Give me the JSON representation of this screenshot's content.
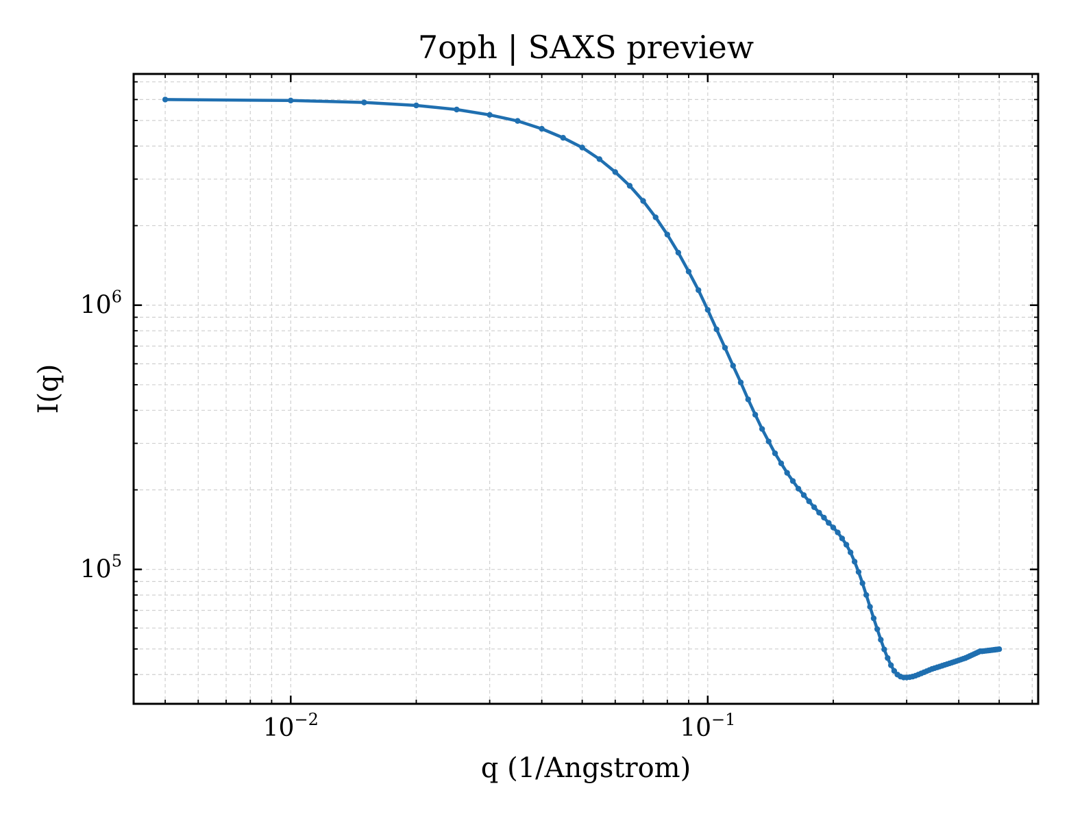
{
  "chart_data": {
    "type": "line",
    "title": "7oph | SAXS preview",
    "xlabel": "q (1/Angstrom)",
    "ylabel": "I(q)",
    "xscale": "log",
    "yscale": "log",
    "xlim": [
      0.0042,
      0.62
    ],
    "ylim": [
      31000,
      7500000
    ],
    "grid": true,
    "x_ticks": [
      {
        "value": 0.01,
        "base": "10",
        "exponent": "−2"
      },
      {
        "value": 0.1,
        "base": "10",
        "exponent": "−1"
      }
    ],
    "y_ticks": [
      {
        "value": 100000,
        "base": "10",
        "exponent": "5"
      },
      {
        "value": 1000000,
        "base": "10",
        "exponent": "6"
      }
    ],
    "series": [
      {
        "color": "#1f6fb0",
        "marker": "dot",
        "x": [
          0.005,
          0.01,
          0.015,
          0.02,
          0.025,
          0.03,
          0.035,
          0.04,
          0.045,
          0.05,
          0.055,
          0.06,
          0.065,
          0.07,
          0.075,
          0.08,
          0.085,
          0.09,
          0.095,
          0.1,
          0.105,
          0.11,
          0.115,
          0.12,
          0.125,
          0.13,
          0.135,
          0.14,
          0.145,
          0.15,
          0.155,
          0.16,
          0.165,
          0.17,
          0.175,
          0.18,
          0.185,
          0.19,
          0.195,
          0.2,
          0.205,
          0.21,
          0.215,
          0.22,
          0.225,
          0.23,
          0.235,
          0.24,
          0.245,
          0.25,
          0.255,
          0.26,
          0.265,
          0.27,
          0.275,
          0.28,
          0.285,
          0.29,
          0.295,
          0.3,
          0.305,
          0.31,
          0.315,
          0.32,
          0.325,
          0.33,
          0.335,
          0.34,
          0.345,
          0.35,
          0.355,
          0.36,
          0.365,
          0.37,
          0.375,
          0.38,
          0.385,
          0.39,
          0.395,
          0.4,
          0.405,
          0.41,
          0.415,
          0.42,
          0.425,
          0.43,
          0.435,
          0.44,
          0.445,
          0.45,
          0.455,
          0.46,
          0.465,
          0.47,
          0.475,
          0.48,
          0.485,
          0.49,
          0.495,
          0.5
        ],
        "y": [
          6000000,
          5950000,
          5850000,
          5700000,
          5500000,
          5250000,
          4980000,
          4650000,
          4300000,
          3950000,
          3570000,
          3190000,
          2830000,
          2480000,
          2150000,
          1850000,
          1580000,
          1340000,
          1140000,
          960000,
          810000,
          690000,
          590000,
          510000,
          440000,
          385000,
          340000,
          305000,
          275000,
          252000,
          232000,
          216000,
          202000,
          191000,
          181000,
          172000,
          164000,
          157000,
          150000,
          144000,
          138000,
          131000,
          124000,
          116000,
          107000,
          97800,
          88700,
          80000,
          72200,
          65300,
          59400,
          54200,
          49800,
          46200,
          43400,
          41300,
          40000,
          39300,
          39000,
          39000,
          39100,
          39300,
          39600,
          40000,
          40400,
          40800,
          41200,
          41600,
          42000,
          42300,
          42600,
          42900,
          43200,
          43500,
          43800,
          44100,
          44400,
          44700,
          45000,
          45300,
          45600,
          45900,
          46200,
          46600,
          47000,
          47400,
          47800,
          48200,
          48600,
          49000,
          49000,
          49100,
          49200,
          49300,
          49400,
          49500,
          49600,
          49700,
          49800,
          49900
        ]
      }
    ]
  }
}
